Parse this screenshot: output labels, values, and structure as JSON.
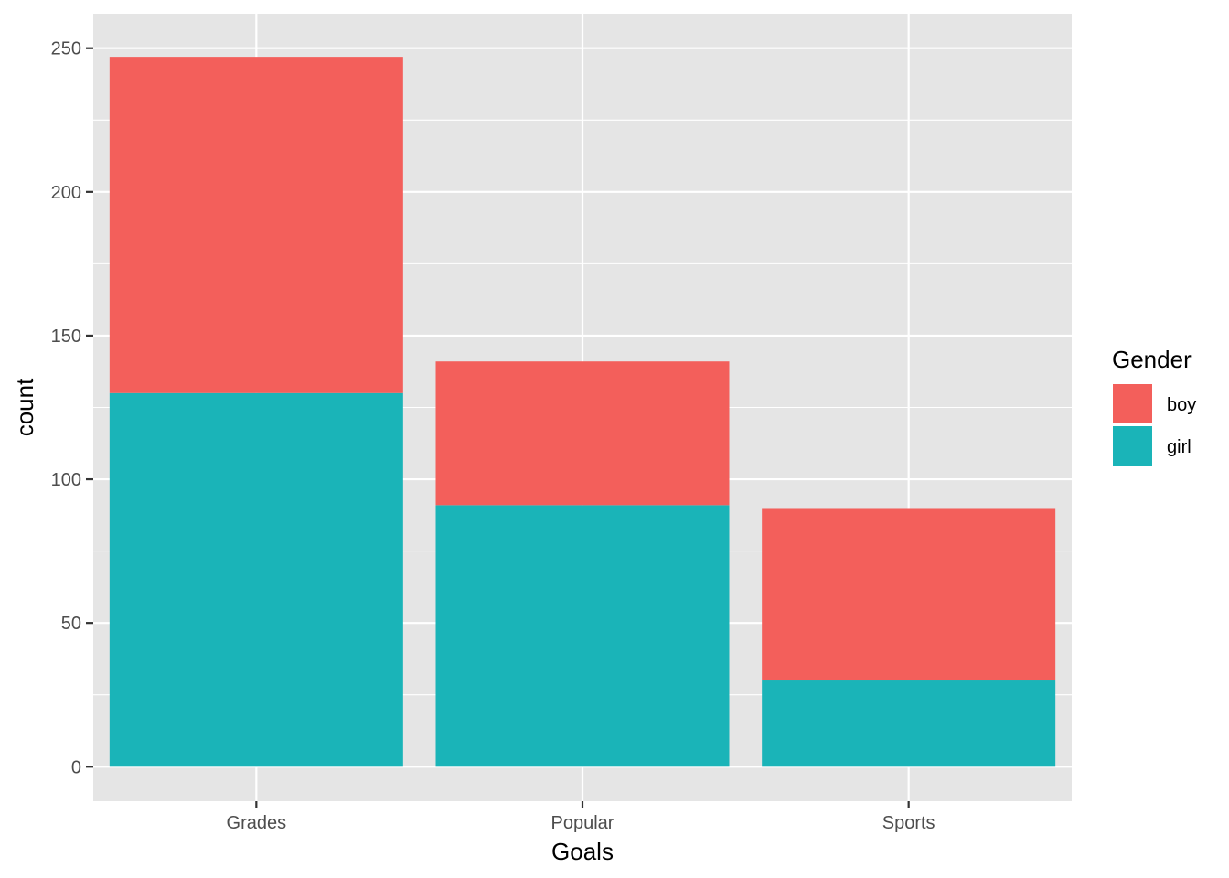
{
  "chart_data": {
    "type": "bar",
    "stacked": true,
    "categories": [
      "Grades",
      "Popular",
      "Sports"
    ],
    "series": [
      {
        "name": "boy",
        "color": "#F35F5B",
        "values": [
          117,
          50,
          60
        ]
      },
      {
        "name": "girl",
        "color": "#1AB4B8",
        "values": [
          130,
          91,
          30
        ]
      }
    ],
    "xlabel": "Goals",
    "ylabel": "count",
    "ylim": [
      -12,
      262
    ],
    "yticks": [
      0,
      50,
      100,
      150,
      200,
      250
    ],
    "ytick_labels": [
      "0",
      "50",
      "100",
      "150",
      "200",
      "250"
    ],
    "legend": {
      "title": "Gender",
      "placement": "right"
    },
    "grid": true,
    "panel_color": "#E5E5E5",
    "grid_color": "#FFFFFF"
  }
}
